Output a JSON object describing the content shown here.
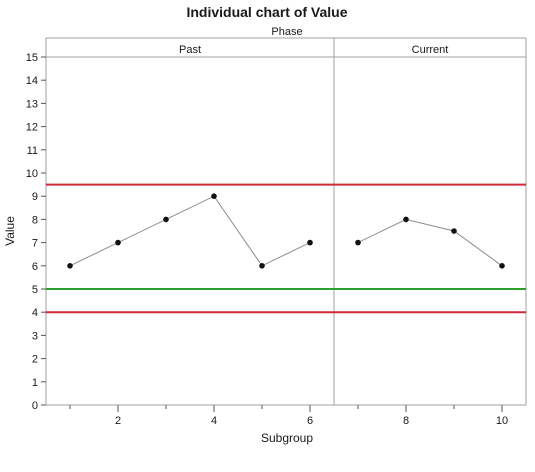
{
  "chart_data": {
    "type": "line",
    "title": "Individual chart of Value",
    "phase_header": "Phase",
    "phases": [
      {
        "name": "Past",
        "x_start": 1,
        "x_end": 6
      },
      {
        "name": "Current",
        "x_start": 7,
        "x_end": 10
      }
    ],
    "xlabel": "Subgroup",
    "ylabel": "Value",
    "x": [
      1,
      2,
      3,
      4,
      5,
      6,
      7,
      8,
      9,
      10
    ],
    "values": [
      6,
      7,
      8,
      9,
      6,
      7,
      7,
      8,
      7.5,
      6
    ],
    "xlim": [
      0.5,
      10.5
    ],
    "ylim": [
      0,
      15
    ],
    "x_ticks": [
      2,
      4,
      6,
      8,
      10
    ],
    "y_ticks": [
      0,
      1,
      2,
      3,
      4,
      5,
      6,
      7,
      8,
      9,
      10,
      11,
      12,
      13,
      14,
      15
    ],
    "control_limits": {
      "ucl": 9.5,
      "center": 5,
      "lcl": 4
    },
    "colors": {
      "limit": "#d0293a",
      "center": "#2ca02c",
      "series_line": "#8c8c8c",
      "point": "#111111",
      "frame": "#a0a0a0"
    },
    "grid": false
  }
}
